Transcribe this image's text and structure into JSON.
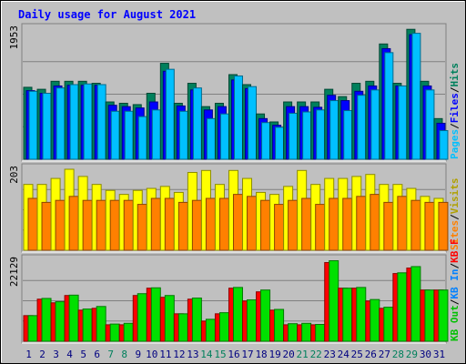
{
  "chart_data": {
    "type": "bar",
    "title": "Daily usage for August 2021",
    "categories": [
      "1",
      "2",
      "3",
      "4",
      "5",
      "6",
      "7",
      "8",
      "9",
      "10",
      "11",
      "12",
      "13",
      "14",
      "15",
      "16",
      "17",
      "18",
      "19",
      "20",
      "21",
      "22",
      "23",
      "24",
      "25",
      "26",
      "27",
      "28",
      "29",
      "30",
      "31"
    ],
    "weekend_days": [
      "7",
      "8",
      "14",
      "15",
      "21",
      "22",
      "28",
      "29"
    ],
    "panels": [
      {
        "id": "hits-pages",
        "ymax": 1953,
        "ymax_label": "1953",
        "legend": [
          {
            "text": "Hits",
            "color": "#00805c"
          },
          {
            "text": "/",
            "color": "#000000"
          },
          {
            "text": "Files",
            "color": "#0000ff"
          },
          {
            "text": "/",
            "color": "#000000"
          },
          {
            "text": "Pages",
            "color": "#00c0ff"
          }
        ],
        "series": [
          {
            "name": "Hits",
            "color": "#00805c",
            "values": [
              1080,
              1050,
              1170,
              1170,
              1170,
              1140,
              860,
              840,
              820,
              990,
              1440,
              840,
              1140,
              790,
              840,
              1270,
              1120,
              680,
              560,
              860,
              860,
              860,
              1050,
              940,
              1140,
              1170,
              1730,
              1140,
              1950,
              1170,
              610
            ]
          },
          {
            "name": "Files",
            "color": "#0000ff",
            "values": [
              1030,
              990,
              1100,
              1110,
              1110,
              1110,
              810,
              790,
              770,
              860,
              1320,
              800,
              1040,
              740,
              790,
              1190,
              1060,
              610,
              510,
              790,
              790,
              780,
              960,
              880,
              1020,
              1100,
              1660,
              1100,
              1870,
              1100,
              540
            ]
          },
          {
            "name": "Pages",
            "color": "#00c0ff",
            "values": [
              1020,
              990,
              1070,
              1120,
              1130,
              1120,
              720,
              720,
              640,
              740,
              1350,
              720,
              1070,
              610,
              680,
              1250,
              1090,
              550,
              480,
              690,
              710,
              740,
              880,
              730,
              960,
              1040,
              1600,
              1100,
              1890,
              1040,
              430
            ]
          }
        ]
      },
      {
        "id": "visits-sites",
        "ymax": 203,
        "ymax_label": "203",
        "legend": [
          {
            "text": "Visits",
            "color": "#b0a000"
          },
          {
            "text": "/",
            "color": "#000000"
          },
          {
            "text": "Sites",
            "color": "#ff8000"
          }
        ],
        "series": [
          {
            "name": "Visits",
            "color": "#ffff00",
            "values": [
              165,
              165,
              180,
              203,
              185,
              165,
              150,
              140,
              150,
              155,
              160,
              145,
              195,
              200,
              165,
              200,
              180,
              145,
              140,
              160,
              200,
              165,
              180,
              180,
              185,
              190,
              165,
              165,
              155,
              135,
              130
            ]
          },
          {
            "name": "Sites",
            "color": "#ff8000",
            "values": [
              130,
              120,
              125,
              135,
              125,
              125,
              125,
              125,
              115,
              130,
              130,
              120,
              125,
              130,
              130,
              140,
              135,
              125,
              115,
              125,
              130,
              115,
              130,
              130,
              135,
              140,
              120,
              135,
              125,
              120,
              120
            ]
          }
        ]
      },
      {
        "id": "kbytes",
        "ymax": 22129,
        "ymax_label": "22129",
        "legend": [
          {
            "text": "KB F",
            "color": "#ff0000"
          },
          {
            "text": "/",
            "color": "#000000"
          },
          {
            "text": "KB In",
            "color": "#0080ff"
          },
          {
            "text": "/",
            "color": "#000000"
          },
          {
            "text": "KB Out",
            "color": "#00c000"
          }
        ],
        "series": [
          {
            "name": "KB F",
            "color": "#ff0000",
            "values": [
              7000,
              11500,
              10500,
              12500,
              8500,
              9000,
              4500,
              4500,
              12500,
              14500,
              12000,
              7500,
              11500,
              5500,
              7500,
              14500,
              11000,
              13500,
              8500,
              4500,
              4500,
              4500,
              21500,
              14500,
              14500,
              11000,
              9000,
              18500,
              20000,
              14000,
              14000
            ]
          },
          {
            "name": "KB Out",
            "color": "#00e000",
            "values": [
              7000,
              11700,
              10800,
              12600,
              8800,
              9500,
              4700,
              4900,
              13000,
              14600,
              12500,
              7500,
              11800,
              6000,
              7800,
              14700,
              11300,
              14000,
              8700,
              4800,
              4900,
              4600,
              22000,
              14500,
              14700,
              11400,
              9300,
              18700,
              20400,
              14000,
              14000
            ]
          }
        ]
      }
    ]
  }
}
